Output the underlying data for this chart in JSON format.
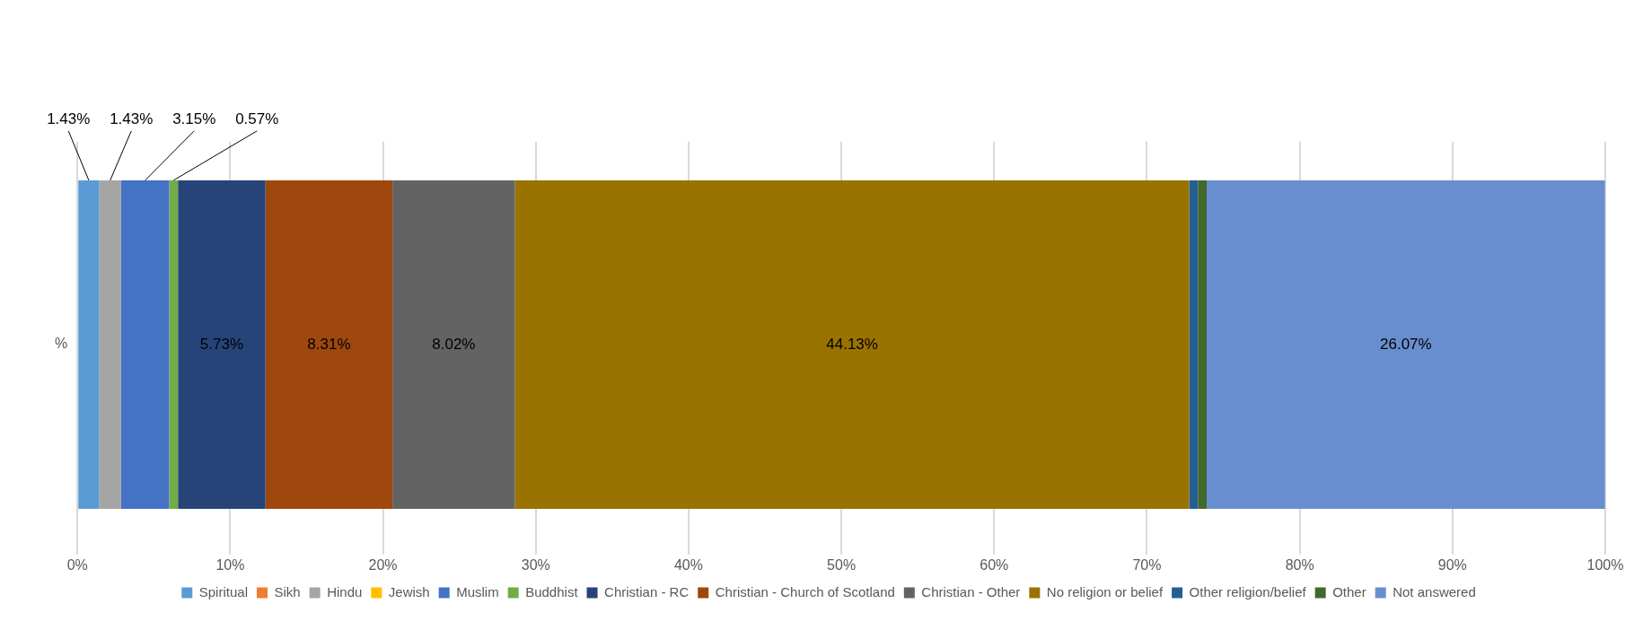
{
  "chart_data": {
    "type": "bar",
    "orientation": "horizontal",
    "stacked": true,
    "categories": [
      "%"
    ],
    "xlim": [
      0,
      100
    ],
    "xticks": [
      {
        "value": 0,
        "label": "0%"
      },
      {
        "value": 10,
        "label": "10%"
      },
      {
        "value": 20,
        "label": "20%"
      },
      {
        "value": 30,
        "label": "30%"
      },
      {
        "value": 40,
        "label": "40%"
      },
      {
        "value": 50,
        "label": "50%"
      },
      {
        "value": 60,
        "label": "60%"
      },
      {
        "value": 70,
        "label": "70%"
      },
      {
        "value": 80,
        "label": "80%"
      },
      {
        "value": 90,
        "label": "90%"
      },
      {
        "value": 100,
        "label": "100%"
      }
    ],
    "grid": "x",
    "legend": "bottom",
    "series": [
      {
        "name": "Spiritual",
        "color": "#5b9bd5",
        "values": [
          1.43
        ],
        "value_labels": [
          "1.43%"
        ]
      },
      {
        "name": "Sikh",
        "color": "#ed7d31",
        "values": [
          0
        ],
        "value_labels": [
          null
        ]
      },
      {
        "name": "Hindu",
        "color": "#a5a5a5",
        "values": [
          1.43
        ],
        "value_labels": [
          "1.43%"
        ]
      },
      {
        "name": "Jewish",
        "color": "#ffc000",
        "values": [
          0
        ],
        "value_labels": [
          null
        ]
      },
      {
        "name": "Muslim",
        "color": "#4472c4",
        "values": [
          3.15
        ],
        "value_labels": [
          "3.15%"
        ]
      },
      {
        "name": "Buddhist",
        "color": "#70ad47",
        "values": [
          0.57
        ],
        "value_labels": [
          "0.57%"
        ]
      },
      {
        "name": "Christian - RC",
        "color": "#264478",
        "values": [
          5.73
        ],
        "value_labels": [
          "5.73%"
        ]
      },
      {
        "name": "Christian - Church of Scotland",
        "color": "#9e480e",
        "values": [
          8.31
        ],
        "value_labels": [
          "8.31%"
        ]
      },
      {
        "name": "Christian - Other",
        "color": "#636363",
        "values": [
          8.02
        ],
        "value_labels": [
          "8.02%"
        ]
      },
      {
        "name": "No religion or belief",
        "color": "#997300",
        "values": [
          44.13
        ],
        "value_labels": [
          "44.13%"
        ]
      },
      {
        "name": "Other religion/belief",
        "color": "#255e91",
        "values": [
          0.57
        ],
        "value_labels": [
          null
        ]
      },
      {
        "name": "Other",
        "color": "#43682b",
        "values": [
          0.57
        ],
        "value_labels": [
          null
        ]
      },
      {
        "name": "Not answered",
        "color": "#698ed0",
        "values": [
          26.07
        ],
        "value_labels": [
          "26.07%"
        ]
      }
    ]
  }
}
